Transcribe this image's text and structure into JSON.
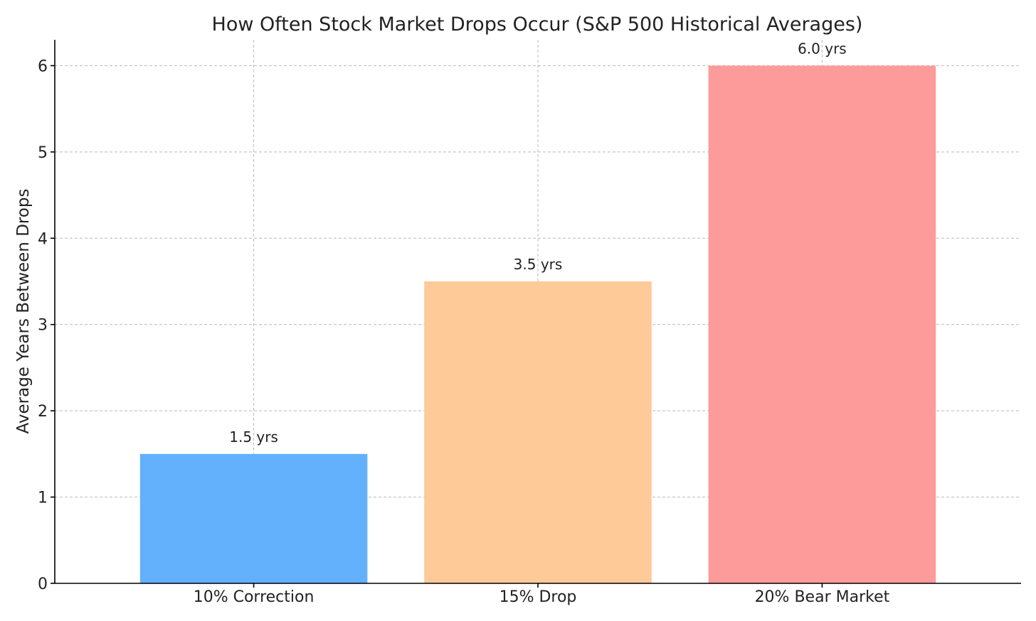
{
  "chart_data": {
    "type": "bar",
    "title": "How Often Stock Market Drops Occur (S&P 500 Historical Averages)",
    "xlabel": "",
    "ylabel": "Average Years Between Drops",
    "categories": [
      "10% Correction",
      "15% Drop",
      "20% Bear Market"
    ],
    "values": [
      1.5,
      3.5,
      6.0
    ],
    "data_labels": [
      "1.5 yrs",
      "3.5 yrs",
      "6.0 yrs"
    ],
    "colors": [
      "#63b1fd",
      "#fdca98",
      "#fd9a9a"
    ],
    "ylim": [
      0,
      6.3
    ],
    "yticks": [
      0,
      1,
      2,
      3,
      4,
      5,
      6
    ],
    "grid": true
  }
}
